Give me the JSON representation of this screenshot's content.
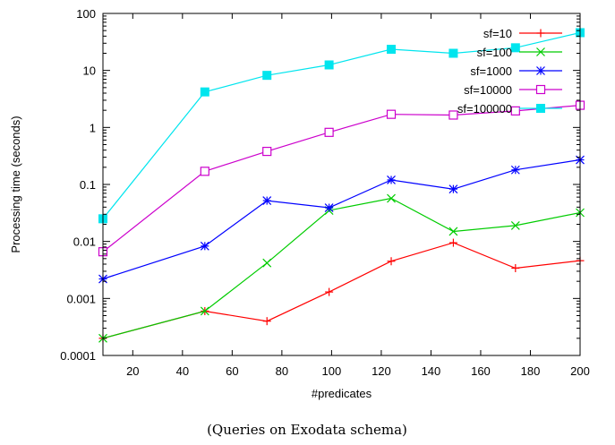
{
  "chart_data": {
    "type": "line",
    "xlabel": "#predicates",
    "ylabel": "Processing time (seconds)",
    "caption": "(Queries on Exodata schema)",
    "xlim": [
      8,
      200
    ],
    "ylim": [
      0.0001,
      100
    ],
    "yscale": "log",
    "xticks": [
      20,
      40,
      60,
      80,
      100,
      120,
      140,
      160,
      180,
      200
    ],
    "xtick_labels": [
      "20",
      "40",
      "60",
      "80",
      "100",
      "120",
      "140",
      "160",
      "180",
      "200"
    ],
    "yticks": [
      0.0001,
      0.001,
      0.01,
      0.1,
      1,
      10,
      100
    ],
    "ytick_labels": [
      "0.0001",
      "0.001",
      "0.01",
      "0.1",
      "1",
      "10",
      "100"
    ],
    "grid": false,
    "legend_position": "top-right",
    "x": [
      8,
      49,
      74,
      99,
      124,
      149,
      174,
      200
    ],
    "series": [
      {
        "name": "sf=10",
        "color": "#ff0000",
        "marker": "plus",
        "values": [
          0.0002,
          0.0006,
          0.0004,
          0.0013,
          0.0045,
          0.0095,
          0.0034,
          0.0046
        ]
      },
      {
        "name": "sf=100",
        "color": "#00cc00",
        "marker": "cross",
        "values": [
          0.0002,
          0.0006,
          0.0042,
          0.035,
          0.057,
          0.015,
          0.019,
          0.032
        ]
      },
      {
        "name": "sf=1000",
        "color": "#0000ff",
        "marker": "star",
        "values": [
          0.0022,
          0.0083,
          0.052,
          0.039,
          0.12,
          0.083,
          0.18,
          0.27
        ]
      },
      {
        "name": "sf=10000",
        "color": "#cc00cc",
        "marker": "square-open",
        "values": [
          0.0066,
          0.17,
          0.38,
          0.82,
          1.7,
          1.65,
          1.95,
          2.45
        ]
      },
      {
        "name": "sf=100000",
        "color": "#00e5ee",
        "marker": "square-filled",
        "values": [
          0.025,
          4.2,
          8.2,
          12.5,
          23.5,
          20,
          25,
          46
        ]
      }
    ]
  }
}
